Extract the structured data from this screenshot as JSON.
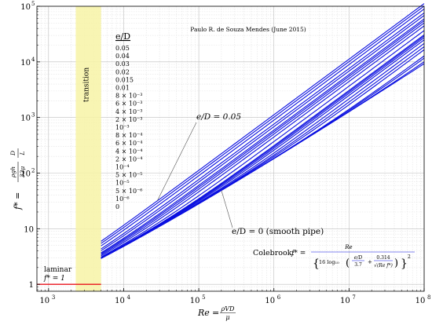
{
  "chart_data": {
    "type": "line",
    "title": "",
    "xscale": "log",
    "yscale": "log",
    "xlim": [
      700,
      100000000
    ],
    "ylim": [
      0.75,
      100000
    ],
    "grid": true,
    "xlabel": {
      "html": "<tspan font-style='italic'>Re</tspan> = ",
      "frac_num": "ρVD",
      "frac_den": "μ"
    },
    "ylabel": {
      "html": "f* =",
      "frac_num": "ρgh_f D",
      "frac_den": "32μ L"
    },
    "ylabel_text": "f* = (ρ g h_f / 32 μ) (D / L)",
    "xlabel_text": "Re = ρVD / μ",
    "credit": "Paulo R. de Souza Mendes (June 2015)",
    "transition": {
      "label": "transition",
      "range": [
        2300,
        5000
      ],
      "color": "#f7f3a6"
    },
    "laminar": {
      "label": "laminar",
      "eq": "f* = 1",
      "value": 1,
      "range": [
        700,
        5000
      ],
      "color": "#e8121b"
    },
    "turbulent_color": "#0b10e0",
    "turbulent_range": [
      5000,
      100000000
    ],
    "legend_title": "e/D",
    "roughness": [
      {
        "label": "0.05",
        "value": 0.05
      },
      {
        "label": "0.04",
        "value": 0.04
      },
      {
        "label": "0.03",
        "value": 0.03
      },
      {
        "label": "0.02",
        "value": 0.02
      },
      {
        "label": "0.015",
        "value": 0.015
      },
      {
        "label": "0.01",
        "value": 0.01
      },
      {
        "label": "8 × 10⁻³",
        "value": 0.008
      },
      {
        "label": "6 × 10⁻³",
        "value": 0.006
      },
      {
        "label": "4 × 10⁻³",
        "value": 0.004
      },
      {
        "label": "2 × 10⁻³",
        "value": 0.002
      },
      {
        "label": "10⁻³",
        "value": 0.001
      },
      {
        "label": "8 × 10⁻⁴",
        "value": 0.0008
      },
      {
        "label": "6 × 10⁻⁴",
        "value": 0.0006
      },
      {
        "label": "4 × 10⁻⁴",
        "value": 0.0004
      },
      {
        "label": "2 × 10⁻⁴",
        "value": 0.0002
      },
      {
        "label": "10⁻⁴",
        "value": 0.0001
      },
      {
        "label": "5 × 10⁻⁵",
        "value": 5e-05
      },
      {
        "label": "10⁻⁵",
        "value": 1e-05
      },
      {
        "label": "5 × 10⁻⁶",
        "value": 5e-06
      },
      {
        "label": "10⁻⁶",
        "value": 1e-06
      },
      {
        "label": "0",
        "value": 0
      }
    ],
    "annotations": {
      "rough": "e/D = 0.05",
      "smooth": "e/D = 0 (smooth pipe)"
    },
    "colebrook": {
      "label": "Colebrook:",
      "lhs": "f* =",
      "num": "Re",
      "den_a": "16 log₁₀",
      "den_b": "e/D",
      "den_c": "3.7",
      "den_d": "0.314",
      "den_e": "√(Re f*)",
      "text": "f* = Re / {16 log10[(e/D)/3.7 + 0.314/√(Re f*)]}²"
    },
    "x_ticks": [
      {
        "value": 1000,
        "mant": "10",
        "exp": "3"
      },
      {
        "value": 10000,
        "mant": "10",
        "exp": "4"
      },
      {
        "value": 100000,
        "mant": "10",
        "exp": "5"
      },
      {
        "value": 1000000,
        "mant": "10",
        "exp": "6"
      },
      {
        "value": 10000000,
        "mant": "10",
        "exp": "7"
      },
      {
        "value": 100000000,
        "mant": "10",
        "exp": "8"
      }
    ],
    "y_ticks": [
      {
        "value": 1,
        "mant": "1",
        "exp": ""
      },
      {
        "value": 10,
        "mant": "10",
        "exp": ""
      },
      {
        "value": 100,
        "mant": "10",
        "exp": "2"
      },
      {
        "value": 1000,
        "mant": "10",
        "exp": "3"
      },
      {
        "value": 10000,
        "mant": "10",
        "exp": "4"
      },
      {
        "value": 100000,
        "mant": "10",
        "exp": "5"
      }
    ]
  }
}
